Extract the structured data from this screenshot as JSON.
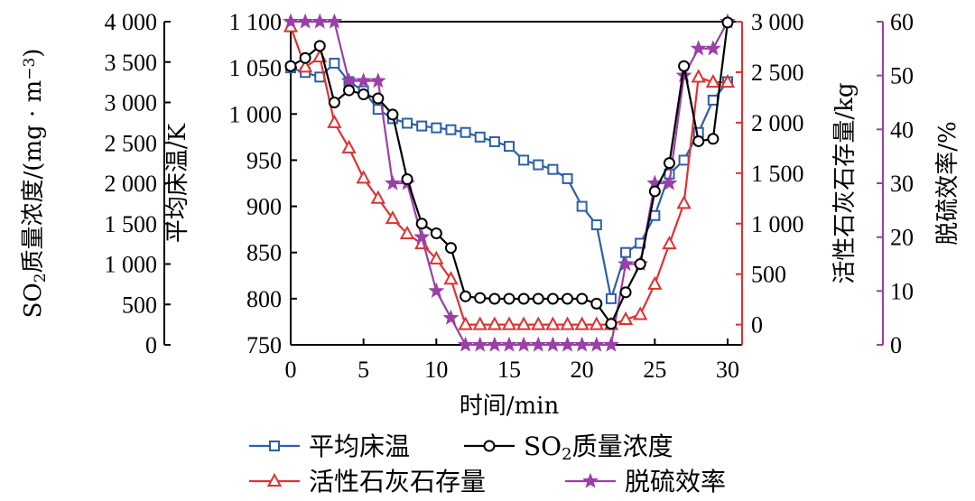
{
  "chart_data": {
    "type": "line",
    "x": [
      0,
      1,
      2,
      3,
      4,
      5,
      6,
      7,
      8,
      9,
      10,
      11,
      12,
      13,
      14,
      15,
      16,
      17,
      18,
      19,
      20,
      21,
      22,
      23,
      24,
      25,
      26,
      27,
      28,
      29,
      30
    ],
    "xlim": [
      0,
      30
    ],
    "xticks": [
      0,
      5,
      10,
      15,
      20,
      25,
      30
    ],
    "xlabel": "时间/min",
    "axes": {
      "so2": {
        "label_main": "SO",
        "label_sub": "2",
        "label_rest": "质量浓度/(mg · m",
        "label_sup": "−3",
        "label_end": ")",
        "ylim": [
          0,
          4000
        ],
        "tick_labels": [
          "0",
          "500",
          "1 000",
          "1 500",
          "2 000",
          "2 500",
          "3 000",
          "3 500",
          "4 000"
        ],
        "color": "#000000"
      },
      "temp": {
        "label": "平均床温/K",
        "ylim": [
          750,
          1100
        ],
        "tick_labels": [
          "750",
          "800",
          "850",
          "900",
          "950",
          "1 000",
          "1 050",
          "1 100"
        ],
        "color": "#000000"
      },
      "limestone": {
        "label": "活性石灰石存量/kg",
        "ylim": [
          -200,
          3000
        ],
        "tick_labels": [
          "0",
          "500",
          "1 000",
          "1 500",
          "2 000",
          "2 500",
          "3 000"
        ],
        "color": "#e03131"
      },
      "efficiency": {
        "label": "脱硫效率/%",
        "ylim": [
          0,
          60
        ],
        "tick_labels": [
          "0",
          "10",
          "20",
          "30",
          "40",
          "50",
          "60"
        ],
        "color": "#9b3fa8"
      }
    },
    "series": [
      {
        "name": "平均床温",
        "axis": "temp",
        "color": "#2d5fa6",
        "marker": "square",
        "values": [
          1050,
          1045,
          1040,
          1055,
          1035,
          1025,
          1005,
          995,
          990,
          987,
          985,
          983,
          980,
          975,
          970,
          965,
          950,
          945,
          940,
          930,
          900,
          880,
          800,
          850,
          860,
          890,
          935,
          950,
          980,
          1015,
          1035
        ]
      },
      {
        "name": "SO",
        "name_sub": "2",
        "name_rest": "质量浓度",
        "axis": "so2",
        "color": "#000000",
        "marker": "circle",
        "values": [
          3450,
          3550,
          3700,
          3000,
          3150,
          3100,
          3050,
          2850,
          2050,
          1500,
          1380,
          1200,
          600,
          580,
          570,
          570,
          570,
          570,
          570,
          570,
          570,
          510,
          260,
          650,
          1000,
          1900,
          2250,
          3450,
          2520,
          2550,
          3990
        ]
      },
      {
        "name": "活性石灰石存量",
        "axis": "limestone",
        "color": "#e03131",
        "marker": "triangle",
        "values": [
          2950,
          2550,
          2650,
          2000,
          1750,
          1450,
          1250,
          1050,
          900,
          800,
          650,
          450,
          0,
          0,
          0,
          0,
          0,
          0,
          0,
          0,
          0,
          0,
          0,
          50,
          100,
          400,
          800,
          1200,
          2450,
          2400,
          2400
        ]
      },
      {
        "name": "脱硫效率",
        "axis": "efficiency",
        "color": "#9b3fa8",
        "marker": "star",
        "values": [
          60,
          60,
          60,
          60,
          49,
          49,
          49,
          30,
          30,
          20,
          10,
          5,
          0,
          0,
          0,
          0,
          0,
          0,
          0,
          0,
          0,
          0,
          0,
          15,
          15,
          30,
          30,
          50,
          55,
          55,
          60
        ]
      }
    ],
    "legend": {
      "position": "bottom-center"
    }
  }
}
